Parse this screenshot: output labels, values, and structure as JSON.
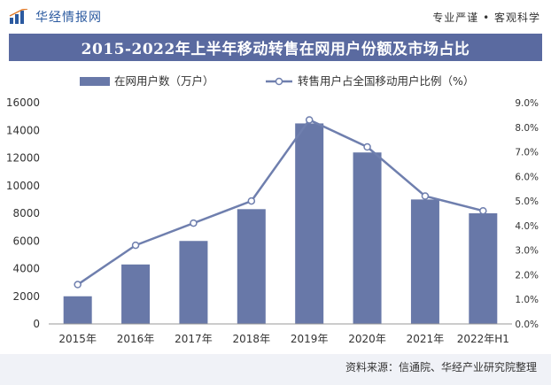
{
  "header": {
    "brand": "华经情报网",
    "slogan": "专业严谨 • 客观科学"
  },
  "colors": {
    "bar": "#6878a8",
    "line": "#6f7fae",
    "banner": "#5a6aa0",
    "brand": "#2b5aa0"
  },
  "chart_data": {
    "type": "bar",
    "title": "2015-2022年上半年移动转售在网用户份额及市场占比",
    "categories": [
      "2015年",
      "2016年",
      "2017年",
      "2018年",
      "2019年",
      "2020年",
      "2021年",
      "2022年H1"
    ],
    "series": [
      {
        "name": "在网用户数（万户）",
        "type": "bar",
        "axis": "left",
        "values": [
          2000,
          4300,
          6000,
          8300,
          14500,
          12400,
          9000,
          8000
        ]
      },
      {
        "name": "转售用户占全国移动用户比例（%）",
        "type": "line",
        "axis": "right",
        "values": [
          1.6,
          3.2,
          4.1,
          5.0,
          8.3,
          7.2,
          5.2,
          4.6
        ]
      }
    ],
    "left_axis": {
      "min": 0,
      "max": 16000,
      "step": 2000,
      "ticks": [
        "0",
        "2000",
        "4000",
        "6000",
        "8000",
        "10000",
        "12000",
        "14000",
        "16000"
      ]
    },
    "right_axis": {
      "min": 0,
      "max": 9,
      "step": 1,
      "ticks": [
        "0.0%",
        "1.0%",
        "2.0%",
        "3.0%",
        "4.0%",
        "5.0%",
        "6.0%",
        "7.0%",
        "8.0%",
        "9.0%"
      ]
    },
    "legend_position": "top"
  },
  "footer": {
    "source": "资料来源：信通院、华经产业研究院整理"
  }
}
